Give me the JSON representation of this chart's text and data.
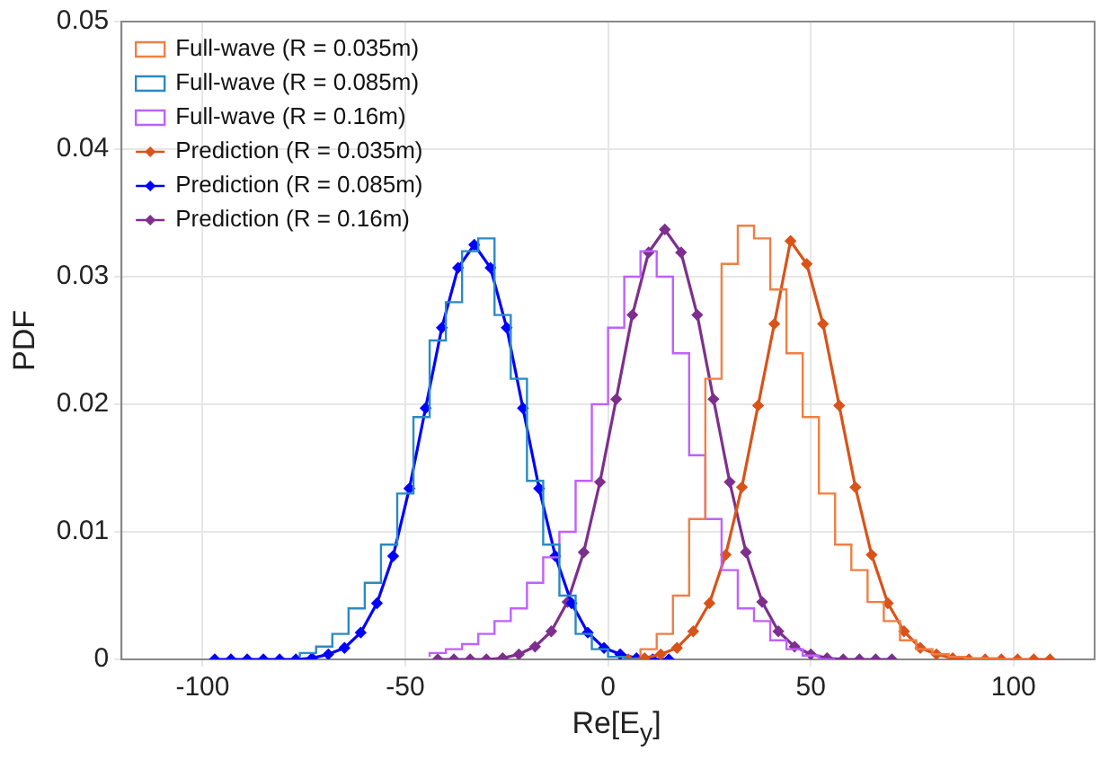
{
  "chart_data": {
    "type": "line",
    "xlabel": "Re[E$_{y}$]",
    "ylabel": "PDF",
    "xlim": [
      -120,
      120
    ],
    "xticks": [
      -100,
      -50,
      0,
      50,
      100
    ],
    "ylim": [
      0,
      0.05
    ],
    "yticks": [
      0,
      0.01,
      0.02,
      0.03,
      0.04,
      0.05
    ],
    "grid": true,
    "legend": "top left",
    "series": [
      {
        "type": "step",
        "name": "Full-wave (R = 0.035m)",
        "color": "#f07f44",
        "x": [
          8,
          12,
          16,
          20,
          24,
          28,
          32,
          36,
          40,
          44,
          48,
          52,
          56,
          60,
          64,
          68,
          72,
          76,
          80,
          84,
          88,
          92,
          96,
          100,
          104
        ],
        "values": [
          0.0002,
          0.0008,
          0.002,
          0.005,
          0.011,
          0.022,
          0.031,
          0.034,
          0.033,
          0.029,
          0.024,
          0.019,
          0.013,
          0.009,
          0.007,
          0.0045,
          0.003,
          0.0015,
          0.0008,
          0.0004,
          0.0002,
          0.0001,
          0.0001,
          0,
          0
        ]
      },
      {
        "type": "step",
        "name": "Full-wave (R = 0.085m)",
        "color": "#2a8ac4",
        "x": [
          -76,
          -72,
          -68,
          -64,
          -60,
          -56,
          -52,
          -48,
          -44,
          -40,
          -36,
          -32,
          -28,
          -24,
          -20,
          -16,
          -12,
          -8,
          -4,
          0,
          4,
          8
        ],
        "values": [
          0.0002,
          0.0005,
          0.001,
          0.002,
          0.004,
          0.006,
          0.009,
          0.013,
          0.019,
          0.025,
          0.028,
          0.032,
          0.033,
          0.027,
          0.022,
          0.014,
          0.009,
          0.005,
          0.002,
          0.0008,
          0.0002,
          0
        ]
      },
      {
        "type": "step",
        "name": "Full-wave (R = 0.16m)",
        "color": "#c060ff",
        "x": [
          -44,
          -40,
          -36,
          -32,
          -28,
          -24,
          -20,
          -16,
          -12,
          -8,
          -4,
          0,
          4,
          8,
          12,
          16,
          20,
          24,
          28,
          32,
          36,
          40,
          44,
          48,
          52,
          56
        ],
        "values": [
          0.0002,
          0.0005,
          0.0008,
          0.0012,
          0.002,
          0.003,
          0.004,
          0.006,
          0.008,
          0.01,
          0.014,
          0.02,
          0.026,
          0.03,
          0.032,
          0.03,
          0.024,
          0.016,
          0.011,
          0.007,
          0.004,
          0.003,
          0.0015,
          0.0008,
          0.0003,
          0
        ]
      },
      {
        "type": "line",
        "name": "Prediction (R = 0.035m)",
        "color": "#d95319",
        "marker": "diamond",
        "x": [
          5,
          9,
          13,
          17,
          21,
          25,
          29,
          33,
          37,
          41,
          45,
          49,
          53,
          57,
          61,
          65,
          69,
          73,
          77,
          81,
          85,
          89,
          93,
          97,
          101,
          105,
          109
        ],
        "values": [
          0,
          0.0001,
          0.0004,
          0.0009,
          0.0022,
          0.0044,
          0.0082,
          0.0135,
          0.0199,
          0.0263,
          0.0328,
          0.031,
          0.0263,
          0.0199,
          0.0135,
          0.0082,
          0.0044,
          0.0022,
          0.0009,
          0.0004,
          0.0001,
          0,
          0,
          0,
          0,
          0,
          0
        ]
      },
      {
        "type": "line",
        "name": "Prediction (R = 0.085m)",
        "color": "#0000ff",
        "marker": "diamond",
        "x": [
          -97,
          -93,
          -89,
          -85,
          -81,
          -77,
          -73,
          -69,
          -65,
          -61,
          -57,
          -53,
          -49,
          -45,
          -41,
          -37,
          -33,
          -29,
          -25,
          -21,
          -17,
          -13,
          -9,
          -5,
          -1,
          3,
          7,
          11,
          15
        ],
        "values": [
          0,
          0,
          0,
          0,
          0,
          0,
          0.0001,
          0.0004,
          0.0009,
          0.0021,
          0.0044,
          0.0081,
          0.0134,
          0.0197,
          0.026,
          0.0307,
          0.0325,
          0.0307,
          0.026,
          0.0197,
          0.0134,
          0.0081,
          0.0044,
          0.0021,
          0.0009,
          0.0004,
          0.0001,
          0,
          0
        ]
      },
      {
        "type": "line",
        "name": "Prediction (R = 0.16m)",
        "color": "#7e2f8e",
        "marker": "diamond",
        "x": [
          -42,
          -38,
          -34,
          -30,
          -26,
          -22,
          -18,
          -14,
          -10,
          -6,
          -2,
          2,
          6,
          10,
          14,
          18,
          22,
          26,
          30,
          34,
          38,
          42,
          46,
          50,
          54,
          58,
          62,
          66,
          70
        ],
        "values": [
          0,
          0,
          0,
          0,
          0.0001,
          0.0004,
          0.001,
          0.0022,
          0.0045,
          0.0084,
          0.0139,
          0.0204,
          0.027,
          0.0319,
          0.0337,
          0.0319,
          0.027,
          0.0204,
          0.0139,
          0.0084,
          0.0045,
          0.0022,
          0.001,
          0.0004,
          0.0001,
          0,
          0,
          0,
          0
        ]
      }
    ]
  }
}
